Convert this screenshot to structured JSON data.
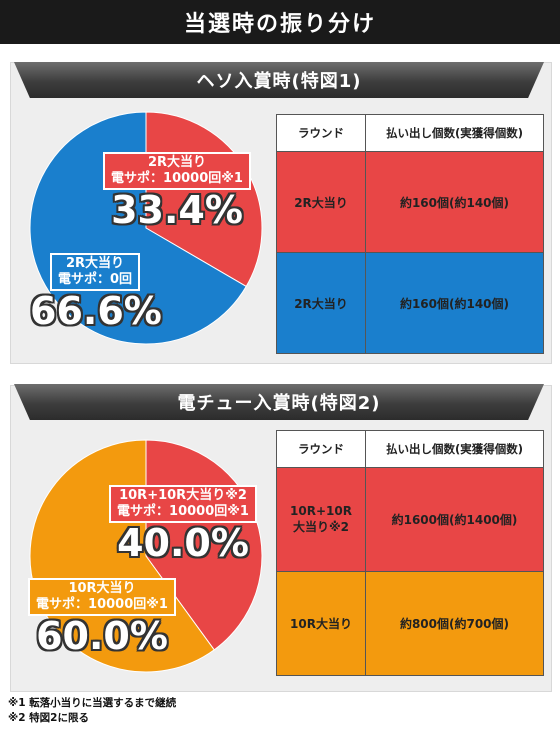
{
  "page_title": "当選時の振り分け",
  "colors": {
    "red": "#e84646",
    "blue": "#1a7fcd",
    "orange": "#f39a0e"
  },
  "chart_data": [
    {
      "type": "pie",
      "title": "ヘソ入賞時(特図1)",
      "series": [
        {
          "name": "2R大当り 電サポ：10000回※1",
          "value": 33.4,
          "value_label": "33.4%",
          "line1": "2R大当り",
          "line2": "電サポ：10000回※1",
          "color": "#e84646"
        },
        {
          "name": "2R大当り 電サポ：0回",
          "value": 66.6,
          "value_label": "66.6%",
          "line1": "2R大当り",
          "line2": "電サポ：0回",
          "color": "#1a7fcd"
        }
      ]
    },
    {
      "type": "pie",
      "title": "電チュー入賞時(特図2)",
      "series": [
        {
          "name": "10R+10R大当り※2 電サポ：10000回※1",
          "value": 40.0,
          "value_label": "40.0%",
          "line1": "10R+10R大当り※2",
          "line2": "電サポ：10000回※1",
          "color": "#e84646"
        },
        {
          "name": "10R大当り 電サポ：10000回※1",
          "value": 60.0,
          "value_label": "60.0%",
          "line1": "10R大当り",
          "line2": "電サポ：10000回※1",
          "color": "#f39a0e"
        }
      ]
    },
    {
      "type": "table",
      "columns": [
        "ラウンド",
        "払い出し個数(実獲得個数)"
      ],
      "rows": [
        {
          "round": "2R大当り",
          "payout": "約160個(約140個)",
          "color": "#e84646"
        },
        {
          "round": "2R大当り",
          "payout": "約160個(約140個)",
          "color": "#1a7fcd"
        }
      ]
    },
    {
      "type": "table",
      "columns": [
        "ラウンド",
        "払い出し個数(実獲得個数)"
      ],
      "rows": [
        {
          "round_line1": "10R+10R",
          "round_line2": "大当り※2",
          "payout": "約1600個(約1400個)",
          "color": "#e84646"
        },
        {
          "round": "10R大当り",
          "payout": "約800個(約700個)",
          "color": "#f39a0e"
        }
      ]
    }
  ],
  "notes": [
    "※1 転落小当りに当選するまで継続",
    "※2 特図2に限る"
  ]
}
